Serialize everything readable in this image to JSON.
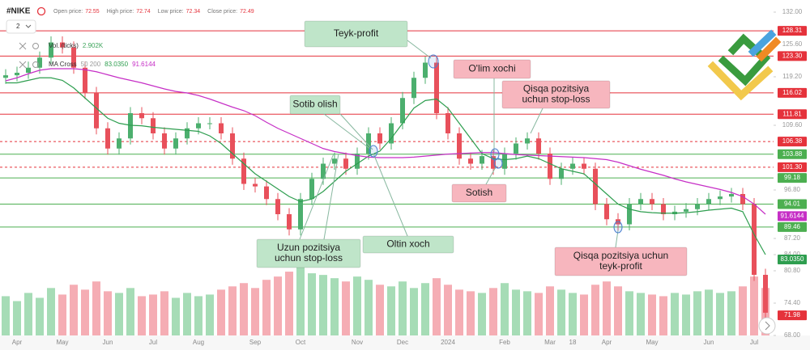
{
  "header": {
    "symbol": "#NIKE",
    "fields": [
      {
        "label": "Open price:",
        "value": 72.55
      },
      {
        "label": "High price:",
        "value": 72.74
      },
      {
        "label": "Low price:",
        "value": 72.34
      },
      {
        "label": "Close price:",
        "value": 72.49
      }
    ]
  },
  "legend": {
    "interval": "2",
    "indicators": [
      {
        "name": "Vol. (ticks)",
        "values": [
          "2.902K"
        ],
        "colors": [
          "#3fa55d"
        ]
      },
      {
        "name": "MA Cross",
        "values": [
          "50 200",
          "83.0350",
          "91.6144"
        ],
        "colors": [
          "#999999",
          "#2e9e4f",
          "#c62fc6"
        ]
      }
    ]
  },
  "chart_data": {
    "type": "candlestick",
    "categories": [
      null,
      "Apr",
      null,
      null,
      null,
      "May",
      null,
      null,
      null,
      "Jun",
      null,
      null,
      null,
      "Jul",
      null,
      null,
      null,
      "Aug",
      null,
      null,
      null,
      null,
      "Sep",
      null,
      null,
      null,
      "Oct",
      null,
      null,
      null,
      null,
      "Nov",
      null,
      null,
      null,
      "Dec",
      null,
      null,
      null,
      "2024",
      null,
      null,
      null,
      null,
      "Feb",
      null,
      null,
      null,
      "Mar",
      null,
      "18",
      null,
      null,
      "Apr",
      null,
      null,
      null,
      "May",
      null,
      null,
      null,
      null,
      "Jun",
      null,
      null,
      null,
      "Jul",
      null
    ],
    "open": [
      119,
      119.5,
      120,
      121,
      123,
      126,
      125,
      121,
      116,
      109,
      105,
      107,
      112,
      111,
      108,
      105,
      107,
      109,
      110,
      110,
      108,
      103,
      98,
      97.5,
      95,
      92,
      89,
      95,
      99,
      102,
      103,
      101,
      104,
      108,
      106,
      110,
      115,
      119,
      122,
      112,
      108,
      103,
      102,
      103.5,
      101,
      104,
      106,
      107,
      104,
      99,
      101,
      102,
      101,
      94,
      91,
      90,
      94,
      95,
      94,
      92,
      92.5,
      93,
      94,
      95,
      95.5,
      96,
      94,
      80
    ],
    "high": [
      120.7,
      121.2,
      122.2,
      124.2,
      127.2,
      127.2,
      126.2,
      122.2,
      117.2,
      110.2,
      108.2,
      113.2,
      113.2,
      112.2,
      109.2,
      108.2,
      110.2,
      111.2,
      111.2,
      111.2,
      109.2,
      104.2,
      99.2,
      98.7,
      96.2,
      93.2,
      96.2,
      100.2,
      103.2,
      104.2,
      104.2,
      105.2,
      109.2,
      109.2,
      111.2,
      116.2,
      120.2,
      123.2,
      123.2,
      113.2,
      109.2,
      104.2,
      104.7,
      104.7,
      105.2,
      107.2,
      108.2,
      108.2,
      105.2,
      102.2,
      103.2,
      103.2,
      102.2,
      95.2,
      92.2,
      95.2,
      96.2,
      96.2,
      95.2,
      93.7,
      94.2,
      95.2,
      96.2,
      96.7,
      97.2,
      97.2,
      95.2,
      81.2
    ],
    "low": [
      117.8,
      118.3,
      118.8,
      119.8,
      121.8,
      123.8,
      119.8,
      114.8,
      107.8,
      103.8,
      103.8,
      105.8,
      109.8,
      106.8,
      103.8,
      103.8,
      105.8,
      107.8,
      108.8,
      106.8,
      101.8,
      96.8,
      96.3,
      93.8,
      90.8,
      87.8,
      87.8,
      93.8,
      97.8,
      100.8,
      99.8,
      99.8,
      102.8,
      104.8,
      104.8,
      108.8,
      113.8,
      117.8,
      110.8,
      106.8,
      101.8,
      100.8,
      100.8,
      99.8,
      99.8,
      102.8,
      104.8,
      102.8,
      97.8,
      97.8,
      99.8,
      99.8,
      92.8,
      89.8,
      88.8,
      88.8,
      92.8,
      92.8,
      90.8,
      90.8,
      91.3,
      91.8,
      92.8,
      93.8,
      94.3,
      92.8,
      78.8,
      71.3
    ],
    "close": [
      119.5,
      120,
      121,
      123,
      126,
      125,
      121,
      116,
      109,
      105,
      107,
      112,
      111,
      108,
      105,
      107,
      109,
      110,
      110,
      108,
      103,
      98,
      97.5,
      95,
      92,
      89,
      95,
      99,
      102,
      103,
      101,
      104,
      108,
      106,
      110,
      115,
      119,
      122,
      112,
      108,
      103,
      102,
      103.5,
      101,
      104,
      106,
      107,
      104,
      99,
      101,
      102,
      101,
      94,
      91,
      90,
      94,
      95,
      94,
      92,
      92.5,
      93,
      94,
      95,
      95.5,
      96,
      94,
      80,
      72.5
    ],
    "up_color": "#4caf6e",
    "down_color": "#e8505b",
    "ma_lines": [
      {
        "color": "#2e9e4f",
        "values": [
          118,
          118,
          118.5,
          119,
          119,
          118.5,
          117,
          115,
          113,
          111,
          110,
          109.6,
          109.5,
          109.2,
          109,
          108.8,
          108.6,
          108.4,
          107.5,
          106,
          104,
          102,
          100,
          98.5,
          97,
          95.5,
          94.5,
          95,
          96.5,
          98.5,
          100.5,
          102,
          103.5,
          104.5,
          107,
          110,
          113,
          114.5,
          114.8,
          113,
          110,
          107,
          104,
          103,
          102.8,
          103,
          103.5,
          103,
          102,
          101,
          100.5,
          100,
          98,
          96,
          94,
          93,
          92.5,
          92.3,
          92.2,
          92.2,
          92.3,
          92.5,
          92.8,
          93,
          93.2,
          92.5,
          88,
          84
        ]
      },
      {
        "color": "#c62fc6",
        "values": [
          118.4,
          119,
          119.8,
          120.5,
          120.8,
          120.8,
          120.8,
          120.6,
          120.2,
          119.6,
          119,
          118.5,
          118,
          117.4,
          116.8,
          116.3,
          116,
          115.5,
          114.8,
          114,
          113.2,
          112.5,
          111.5,
          110.2,
          109,
          108,
          107,
          106,
          105,
          104.4,
          104,
          103.6,
          103.3,
          103.2,
          103.2,
          103.2,
          103.3,
          103.5,
          103.7,
          103.9,
          104,
          104.1,
          104.2,
          104.2,
          104,
          103.8,
          103.7,
          103.6,
          103.5,
          103.4,
          103.3,
          103.2,
          103,
          102.8,
          102.3,
          101.6,
          100.9,
          100.3,
          99.7,
          99,
          98.4,
          97.9,
          97.4,
          96.9,
          96.3,
          95.5,
          94,
          92
        ]
      }
    ],
    "volume": {
      "up_color": "#a6dcb6",
      "down_color": "#f5adb4",
      "values": [
        2400,
        2100,
        2600,
        2300,
        2900,
        2500,
        3100,
        2800,
        3300,
        2700,
        2600,
        2900,
        2400,
        2500,
        2700,
        2300,
        2600,
        2400,
        2500,
        2800,
        3000,
        3200,
        2900,
        3400,
        3600,
        3900,
        4200,
        3800,
        3700,
        3500,
        3300,
        3600,
        3400,
        3100,
        3000,
        3300,
        2900,
        3200,
        3500,
        3100,
        2800,
        2700,
        2600,
        2900,
        3200,
        2800,
        2700,
        2600,
        3000,
        2800,
        2600,
        2500,
        3100,
        3300,
        3000,
        2700,
        2600,
        2500,
        2400,
        2600,
        2500,
        2700,
        2800,
        2600,
        2700,
        3000,
        3600,
        2902
      ]
    },
    "ylim": [
      68,
      134.4
    ],
    "yticks": [
      {
        "value": 132,
        "label": "132.00"
      },
      {
        "value": 125.6,
        "label": "125.60"
      },
      {
        "value": 119.2,
        "label": "119.20"
      },
      {
        "value": 109.6,
        "label": "109.60"
      },
      {
        "value": 96.8,
        "label": "96.80"
      },
      {
        "value": 87.2,
        "label": "87.20"
      },
      {
        "value": 84,
        "label": "84.00"
      },
      {
        "value": 80.8,
        "label": "80.80"
      },
      {
        "value": 74.4,
        "label": "74.40"
      },
      {
        "value": 68,
        "label": "68.00"
      }
    ],
    "levels": [
      {
        "value": 128.31,
        "label": "128.31",
        "color": "#e5323b",
        "style": "solid"
      },
      {
        "value": 123.3,
        "label": "123.30",
        "color": "#e5323b",
        "style": "solid"
      },
      {
        "value": 116.02,
        "label": "116.02",
        "color": "#e5323b",
        "style": "solid"
      },
      {
        "value": 111.81,
        "label": "111.81",
        "color": "#e5323b",
        "style": "solid"
      },
      {
        "value": 106.38,
        "label": "106.38",
        "color": "#e5323b",
        "style": "dashed"
      },
      {
        "value": 103.88,
        "label": "103.88",
        "color": "#4caf50",
        "style": "solid"
      },
      {
        "value": 101.3,
        "label": "101.30",
        "color": "#e5323b",
        "style": "dashed"
      },
      {
        "value": 99.18,
        "label": "99.18",
        "color": "#4caf50",
        "style": "solid"
      },
      {
        "value": 94.01,
        "label": "94.01",
        "color": "#4caf50",
        "style": "solid"
      },
      {
        "value": 91.6144,
        "label": "91.6144",
        "color": "#c62fc6",
        "style": "none"
      },
      {
        "value": 89.46,
        "label": "89.46",
        "color": "#4caf50",
        "style": "solid"
      },
      {
        "value": 83.035,
        "label": "83.0350",
        "color": "#2e9e4f",
        "style": "none"
      },
      {
        "value": 71.98,
        "label": "71.98",
        "color": "#e5323b",
        "style": "none"
      }
    ],
    "annotations": [
      {
        "lines": [
          "Teyk-profit"
        ],
        "color": "#bfe5c9"
      },
      {
        "lines": [
          "O'lim xochi"
        ],
        "color": "#f7b6be"
      },
      {
        "lines": [
          "Qisqa pozitsiya",
          "uchun stop-loss"
        ],
        "color": "#f7b6be"
      },
      {
        "lines": [
          "Sotib olish"
        ],
        "color": "#bfe5c9"
      },
      {
        "lines": [
          "Sotish"
        ],
        "color": "#f7b6be"
      },
      {
        "lines": [
          "Uzun pozitsiya",
          "uchun stop-loss"
        ],
        "color": "#bfe5c9"
      },
      {
        "lines": [
          "Oltin xoch"
        ],
        "color": "#bfe5c9"
      },
      {
        "lines": [
          "Qisqa pozitsiya uchun",
          "teyk-profit"
        ],
        "color": "#f7b6be"
      }
    ]
  }
}
